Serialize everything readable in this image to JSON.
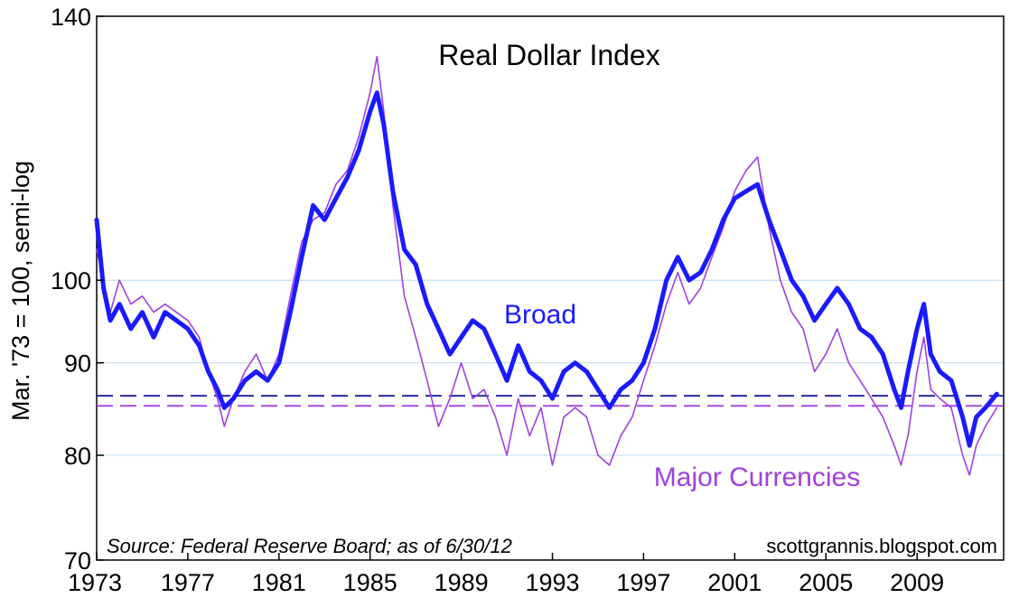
{
  "chart_data": {
    "type": "line",
    "title": "Real Dollar Index",
    "ylabel": "Mar. '73 = 100, semi-log",
    "xlabel": "",
    "y_scale": "log",
    "ylim": [
      70,
      140
    ],
    "xlim": [
      1973.0,
      2012.8
    ],
    "y_ticks": [
      70,
      80,
      90,
      100,
      140
    ],
    "x_ticks": [
      1973,
      1977,
      1981,
      1985,
      1989,
      1993,
      1997,
      2001,
      2005,
      2009
    ],
    "grid": true,
    "source": "Source: Federal Reserve Board; as of 6/30/12",
    "credit": "scottgrannis.blogspot.com",
    "series": [
      {
        "name": "Broad",
        "color": "#1a1aff",
        "x": [
          1973.0,
          1973.3,
          1973.6,
          1974.0,
          1974.5,
          1975.0,
          1975.5,
          1976.0,
          1976.5,
          1977.0,
          1977.5,
          1977.9,
          1978.3,
          1978.6,
          1979.0,
          1979.5,
          1980.0,
          1980.5,
          1981.0,
          1981.5,
          1982.0,
          1982.5,
          1983.0,
          1983.5,
          1984.0,
          1984.5,
          1985.0,
          1985.3,
          1985.6,
          1986.0,
          1986.5,
          1987.0,
          1987.5,
          1988.0,
          1988.5,
          1989.0,
          1989.5,
          1990.0,
          1990.5,
          1991.0,
          1991.5,
          1992.0,
          1992.5,
          1993.0,
          1993.5,
          1994.0,
          1994.5,
          1995.0,
          1995.5,
          1996.0,
          1996.5,
          1997.0,
          1997.5,
          1998.0,
          1998.5,
          1999.0,
          1999.5,
          2000.0,
          2000.5,
          2001.0,
          2001.5,
          2002.0,
          2002.5,
          2003.0,
          2003.5,
          2004.0,
          2004.5,
          2005.0,
          2005.5,
          2006.0,
          2006.5,
          2007.0,
          2007.5,
          2008.0,
          2008.3,
          2008.6,
          2009.0,
          2009.3,
          2009.6,
          2010.0,
          2010.5,
          2011.0,
          2011.3,
          2011.6,
          2012.0,
          2012.5
        ],
        "values": [
          108,
          99,
          95,
          97,
          94,
          96,
          93,
          96,
          95,
          94,
          92,
          89,
          87,
          85,
          86,
          88,
          89,
          88,
          90,
          96,
          103,
          110,
          108,
          111,
          114,
          118,
          124,
          127,
          122,
          112,
          104,
          102,
          97,
          94,
          91,
          93,
          95,
          94,
          91,
          88,
          92,
          89,
          88,
          86,
          89,
          90,
          89,
          87,
          85,
          87,
          88,
          90,
          94,
          100,
          103,
          100,
          101,
          104,
          108,
          111,
          112,
          113,
          108,
          104,
          100,
          98,
          95,
          97,
          99,
          97,
          94,
          93,
          91,
          87,
          85,
          89,
          94,
          97,
          91,
          89,
          88,
          84,
          81,
          84,
          85,
          86.5
        ]
      },
      {
        "name": "Major Currencies",
        "color": "#a040e0",
        "x": [
          1973.0,
          1973.3,
          1973.6,
          1974.0,
          1974.5,
          1975.0,
          1975.5,
          1976.0,
          1976.5,
          1977.0,
          1977.5,
          1977.9,
          1978.3,
          1978.6,
          1979.0,
          1979.5,
          1980.0,
          1980.5,
          1981.0,
          1981.5,
          1982.0,
          1982.5,
          1983.0,
          1983.5,
          1984.0,
          1984.5,
          1985.0,
          1985.3,
          1985.6,
          1986.0,
          1986.5,
          1987.0,
          1987.5,
          1988.0,
          1988.5,
          1989.0,
          1989.5,
          1990.0,
          1990.5,
          1991.0,
          1991.5,
          1992.0,
          1992.5,
          1993.0,
          1993.5,
          1994.0,
          1994.5,
          1995.0,
          1995.5,
          1996.0,
          1996.5,
          1997.0,
          1997.5,
          1998.0,
          1998.5,
          1999.0,
          1999.5,
          2000.0,
          2000.5,
          2001.0,
          2001.5,
          2002.0,
          2002.5,
          2003.0,
          2003.5,
          2004.0,
          2004.5,
          2005.0,
          2005.5,
          2006.0,
          2006.5,
          2007.0,
          2007.5,
          2008.0,
          2008.3,
          2008.6,
          2009.0,
          2009.3,
          2009.6,
          2010.0,
          2010.5,
          2011.0,
          2011.3,
          2011.6,
          2012.0,
          2012.5
        ],
        "values": [
          104,
          100,
          96,
          100,
          97,
          98,
          96,
          97,
          96,
          95,
          93,
          89,
          86,
          83,
          86,
          89,
          91,
          88,
          91,
          98,
          105,
          108,
          109,
          113,
          115,
          120,
          127,
          133,
          124,
          110,
          98,
          93,
          88,
          83,
          86,
          90,
          86,
          87,
          84,
          80,
          86,
          82,
          85,
          79,
          84,
          85,
          84,
          80,
          79,
          82,
          84,
          88,
          92,
          97,
          101,
          97,
          99,
          103,
          107,
          112,
          115,
          117,
          107,
          100,
          96,
          94,
          89,
          91,
          94,
          90,
          88,
          86,
          84,
          81,
          79,
          82,
          89,
          93,
          87,
          86,
          85,
          80,
          78,
          81,
          83,
          85
        ]
      }
    ],
    "reference_lines": [
      {
        "series": "Broad",
        "value": 86.3,
        "color": "#1a1a99",
        "style": "dashed"
      },
      {
        "series": "Major Currencies",
        "value": 85.2,
        "color": "#a040e0",
        "style": "dashed"
      }
    ]
  }
}
